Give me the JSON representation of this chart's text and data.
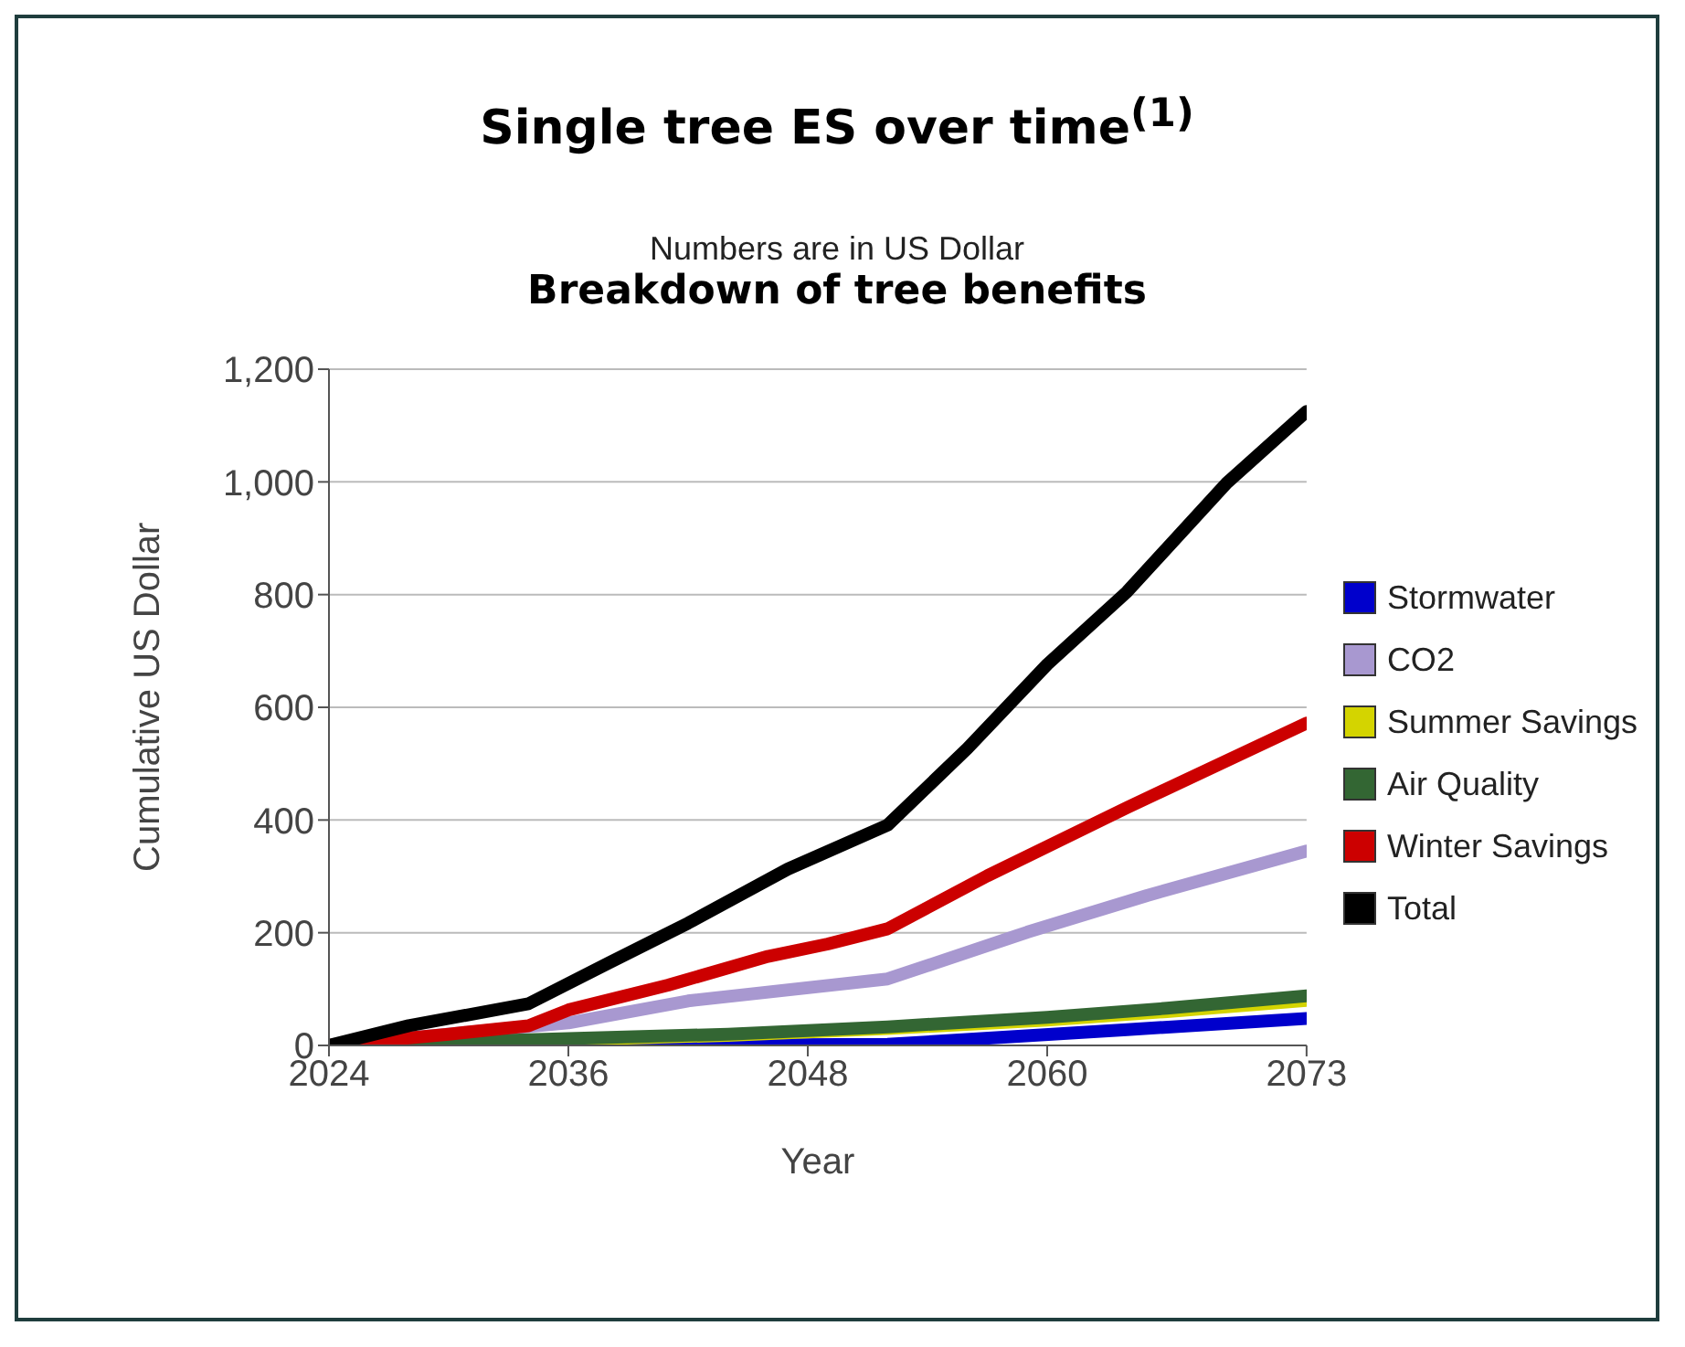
{
  "chart_data": {
    "type": "line",
    "title": "Single tree ES over time$^{(1)}$",
    "subtitle": "Numbers are in US Dollar",
    "annotations": [
      "Breakdown of tree benefits"
    ],
    "xlabel": "Year",
    "ylabel": "Cumulative US Dollar",
    "xlim": [
      2024,
      2073
    ],
    "xticks": [
      2024,
      2036,
      2048,
      2060,
      2073
    ],
    "ylim": [
      0,
      1200
    ],
    "yticks": [
      0,
      {
        "value": 200,
        "label": "200"
      },
      {
        "value": 400,
        "label": "400"
      },
      {
        "value": 600,
        "label": "600"
      },
      {
        "value": 800,
        "label": "800"
      },
      {
        "value": 1000,
        "label": "1,000"
      },
      {
        "value": 1200,
        "label": "1,200"
      }
    ],
    "grid": "y",
    "legend": "right",
    "marker": "none",
    "line_style": "solid",
    "series": [
      {
        "name": "Stormwater",
        "color": "#0000cc",
        "x": [
          2024,
          2040,
          2052,
          2058,
          2064,
          2073
        ],
        "values": [
          0,
          0,
          2,
          15,
          28,
          48
        ]
      },
      {
        "name": "CO2",
        "color": "#a898d0",
        "x": [
          2024,
          2036,
          2042,
          2052,
          2059,
          2065,
          2073
        ],
        "values": [
          0,
          40,
          79,
          118,
          201,
          266,
          345
        ]
      },
      {
        "name": "Summer Savings",
        "color": "#d4d400",
        "x": [
          2024,
          2036,
          2044,
          2052,
          2060,
          2066,
          2073
        ],
        "values": [
          0,
          10,
          18,
          30,
          45,
          60,
          80
        ]
      },
      {
        "name": "Air Quality",
        "color": "#336633",
        "x": [
          2024,
          2036,
          2044,
          2052,
          2060,
          2066,
          2073
        ],
        "values": [
          0,
          12,
          20,
          33,
          50,
          66,
          88
        ]
      },
      {
        "name": "Winter Savings",
        "color": "#cc0000",
        "x": [
          2024,
          2030,
          2034,
          2036,
          2041,
          2046,
          2049,
          2052,
          2057,
          2064,
          2073
        ],
        "values": [
          0,
          20,
          35,
          63,
          107,
          158,
          180,
          207,
          301,
          422,
          572
        ]
      },
      {
        "name": "Total",
        "color": "#000000",
        "x": [
          2024,
          2028,
          2034,
          2038,
          2042,
          2047,
          2052,
          2056,
          2060,
          2064,
          2069,
          2073
        ],
        "values": [
          0,
          35,
          74,
          146,
          217,
          313,
          391,
          527,
          676,
          805,
          998,
          1125
        ]
      }
    ]
  }
}
